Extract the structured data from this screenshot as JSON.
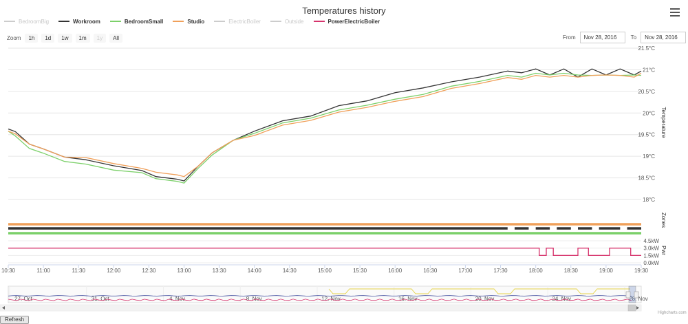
{
  "title": "Temperatures history",
  "legend": [
    {
      "name": "BedroomBig",
      "color": "#cccccc",
      "hidden": true
    },
    {
      "name": "Workroom",
      "color": "#333333",
      "hidden": false
    },
    {
      "name": "BedroomSmall",
      "color": "#7cd06a",
      "hidden": false
    },
    {
      "name": "Studio",
      "color": "#f0a05a",
      "hidden": false
    },
    {
      "name": "ElectricBoiler",
      "color": "#cccccc",
      "hidden": true
    },
    {
      "name": "Outside",
      "color": "#cccccc",
      "hidden": true
    },
    {
      "name": "PowerElectricBoiler",
      "color": "#d6336c",
      "hidden": false
    }
  ],
  "zoom": {
    "label": "Zoom",
    "buttons": [
      "1h",
      "1d",
      "1w",
      "1m",
      "1y",
      "All"
    ],
    "disabled": [
      "1y"
    ]
  },
  "range": {
    "from_label": "From",
    "from_value": "Nov 28, 2016",
    "to_label": "To",
    "to_value": "Nov 28, 2016"
  },
  "refresh_label": "Refresh",
  "credits": "Highcharts.com",
  "chart_data": [
    {
      "type": "line",
      "title": "Temperatures history",
      "ylabel": "Temperature",
      "ylim": [
        18,
        21.5
      ],
      "yticks": [
        "18°C",
        "18.5°C",
        "19°C",
        "19.5°C",
        "20°C",
        "20.5°C",
        "21°C",
        "21.5°C"
      ],
      "ytick_values": [
        18,
        18.5,
        19,
        19.5,
        20,
        20.5,
        21,
        21.5
      ],
      "xlim": [
        10.5,
        19.5
      ],
      "xticks": [
        "10:30",
        "11:00",
        "11:30",
        "12:00",
        "12:30",
        "13:00",
        "13:30",
        "14:00",
        "14:30",
        "15:00",
        "15:30",
        "16:00",
        "16:30",
        "17:00",
        "17:30",
        "18:00",
        "18:30",
        "19:00",
        "19:30"
      ],
      "xtick_values": [
        10.5,
        11,
        11.5,
        12,
        12.5,
        13,
        13.5,
        14,
        14.5,
        15,
        15.5,
        16,
        16.5,
        17,
        17.5,
        18,
        18.5,
        19,
        19.5
      ],
      "series": [
        {
          "name": "Workroom",
          "color": "#333333",
          "x": [
            10.5,
            10.6,
            10.8,
            11.0,
            11.3,
            11.6,
            12.0,
            12.4,
            12.6,
            12.9,
            13.0,
            13.2,
            13.4,
            13.7,
            14.0,
            14.4,
            14.8,
            15.2,
            15.6,
            16.0,
            16.4,
            16.8,
            17.2,
            17.6,
            17.8,
            18.0,
            18.2,
            18.4,
            18.6,
            18.8,
            19.0,
            19.2,
            19.4,
            19.5
          ],
          "y": [
            19.65,
            19.55,
            19.3,
            19.15,
            19.0,
            18.9,
            18.8,
            18.65,
            18.55,
            18.45,
            18.45,
            18.75,
            19.1,
            19.35,
            19.6,
            19.8,
            19.95,
            20.15,
            20.3,
            20.45,
            20.6,
            20.7,
            20.85,
            20.95,
            20.95,
            21.0,
            20.9,
            21.0,
            20.85,
            21.0,
            20.9,
            21.0,
            20.9,
            20.95
          ]
        },
        {
          "name": "BedroomSmall",
          "color": "#7cd06a",
          "x": [
            10.5,
            10.6,
            10.8,
            11.0,
            11.3,
            11.6,
            12.0,
            12.4,
            12.6,
            12.9,
            13.0,
            13.2,
            13.4,
            13.7,
            14.0,
            14.4,
            14.8,
            15.2,
            15.6,
            16.0,
            16.4,
            16.8,
            17.2,
            17.6,
            17.8,
            18.0,
            18.2,
            18.4,
            18.6,
            18.8,
            19.0,
            19.2,
            19.4,
            19.5
          ],
          "y": [
            19.6,
            19.45,
            19.2,
            19.05,
            18.9,
            18.8,
            18.7,
            18.6,
            18.5,
            18.4,
            18.4,
            18.7,
            19.05,
            19.35,
            19.55,
            19.75,
            19.9,
            20.05,
            20.2,
            20.3,
            20.45,
            20.6,
            20.75,
            20.85,
            20.85,
            20.9,
            20.9,
            20.9,
            20.9,
            20.85,
            20.9,
            20.85,
            20.9,
            20.85
          ]
        },
        {
          "name": "Studio",
          "color": "#f0a05a",
          "x": [
            10.5,
            10.6,
            10.8,
            11.0,
            11.3,
            11.6,
            12.0,
            12.4,
            12.6,
            12.9,
            13.0,
            13.2,
            13.4,
            13.7,
            14.0,
            14.4,
            14.8,
            15.2,
            15.6,
            16.0,
            16.4,
            16.8,
            17.2,
            17.6,
            17.8,
            18.0,
            18.2,
            18.4,
            18.6,
            18.8,
            19.0,
            19.2,
            19.4,
            19.5
          ],
          "y": [
            19.6,
            19.5,
            19.3,
            19.15,
            19.0,
            18.95,
            18.85,
            18.7,
            18.65,
            18.55,
            18.55,
            18.75,
            19.1,
            19.35,
            19.5,
            19.7,
            19.85,
            20.0,
            20.15,
            20.25,
            20.4,
            20.55,
            20.7,
            20.8,
            20.8,
            20.85,
            20.85,
            20.85,
            20.85,
            20.85,
            20.9,
            20.85,
            20.85,
            20.9
          ]
        }
      ]
    },
    {
      "type": "timeline",
      "ylabel": "Zones",
      "series": [
        {
          "name": "Studio",
          "color": "#f0a05a",
          "segments": [
            [
              10.5,
              19.5
            ]
          ]
        },
        {
          "name": "Workroom",
          "color": "#333333",
          "segments": [
            [
              10.5,
              17.6
            ],
            [
              17.7,
              17.9
            ],
            [
              18.0,
              18.2
            ],
            [
              18.3,
              18.5
            ],
            [
              18.6,
              18.8
            ],
            [
              18.9,
              19.2
            ],
            [
              19.3,
              19.5
            ]
          ]
        },
        {
          "name": "BedroomSmall",
          "color": "#7cd06a",
          "segments": [
            [
              10.5,
              19.5
            ]
          ]
        }
      ]
    },
    {
      "type": "line",
      "ylabel": "Pwr",
      "ylim": [
        0,
        4.5
      ],
      "yticks": [
        "0.0kW",
        "1.5kW",
        "3.0kW",
        "4.5kW"
      ],
      "ytick_values": [
        0,
        1.5,
        3,
        4.5
      ],
      "series": [
        {
          "name": "PowerElectricBoiler",
          "color": "#d6336c",
          "x": [
            10.5,
            18.05,
            18.05,
            18.15,
            18.15,
            18.25,
            18.25,
            18.6,
            18.6,
            18.75,
            18.75,
            19.05,
            19.05,
            19.35,
            19.35,
            19.5
          ],
          "y": [
            3.0,
            3.0,
            1.5,
            1.5,
            3.0,
            3.0,
            1.5,
            1.5,
            3.0,
            3.0,
            1.5,
            1.5,
            3.0,
            3.0,
            1.5,
            1.5
          ]
        }
      ]
    },
    {
      "type": "navigator",
      "xticks": [
        "27. Oct",
        "31. Oct",
        "4. Nov",
        "8. Nov",
        "12. Nov",
        "16. Nov",
        "20. Nov",
        "24. Nov",
        "28. Nov"
      ]
    }
  ]
}
